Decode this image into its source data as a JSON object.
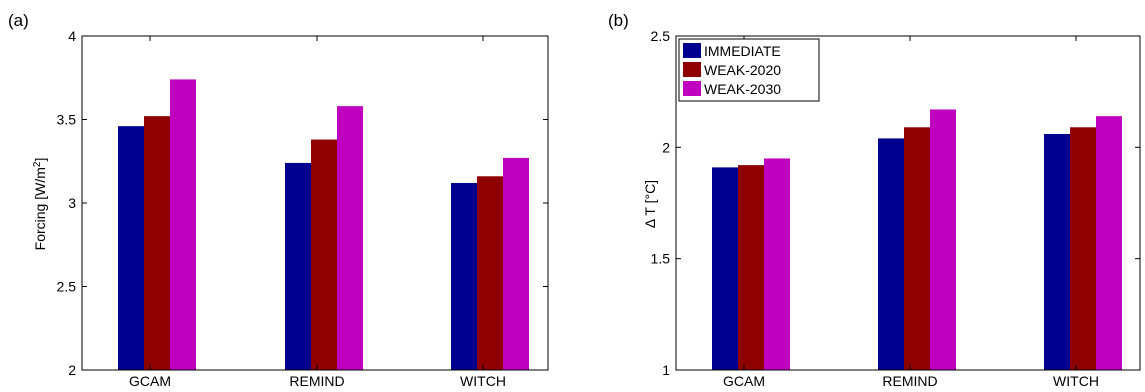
{
  "chart_data": [
    {
      "type": "bar",
      "panel_label": "(a)",
      "title": "",
      "xlabel": "",
      "ylabel": "Forcing [W/m",
      "ylabel_sup": "2",
      "ylabel_end": "]",
      "ylim": [
        2,
        4
      ],
      "yticks": [
        "2",
        "2.5",
        "3",
        "3.5",
        "4"
      ],
      "categories": [
        "GCAM",
        "REMIND",
        "WITCH"
      ],
      "legend": false,
      "series": [
        {
          "name": "IMMEDIATE",
          "color": "#00008f",
          "values": [
            3.46,
            3.24,
            3.12
          ]
        },
        {
          "name": "WEAK-2020",
          "color": "#8f0000",
          "values": [
            3.52,
            3.38,
            3.16
          ]
        },
        {
          "name": "WEAK-2030",
          "color": "#bf00bf",
          "values": [
            3.74,
            3.58,
            3.27
          ]
        }
      ]
    },
    {
      "type": "bar",
      "panel_label": "(b)",
      "title": "",
      "xlabel": "",
      "ylabel": "Δ T [°C]",
      "ylim": [
        1,
        2.5
      ],
      "yticks": [
        "1",
        "1.5",
        "2",
        "2.5"
      ],
      "categories": [
        "GCAM",
        "REMIND",
        "WITCH"
      ],
      "legend": true,
      "legend_position": "top-left",
      "series": [
        {
          "name": "IMMEDIATE",
          "color": "#00008f",
          "values": [
            1.91,
            2.04,
            2.06
          ]
        },
        {
          "name": "WEAK-2020",
          "color": "#8f0000",
          "values": [
            1.92,
            2.09,
            2.09
          ]
        },
        {
          "name": "WEAK-2030",
          "color": "#bf00bf",
          "values": [
            1.95,
            2.17,
            2.14
          ]
        }
      ]
    }
  ]
}
